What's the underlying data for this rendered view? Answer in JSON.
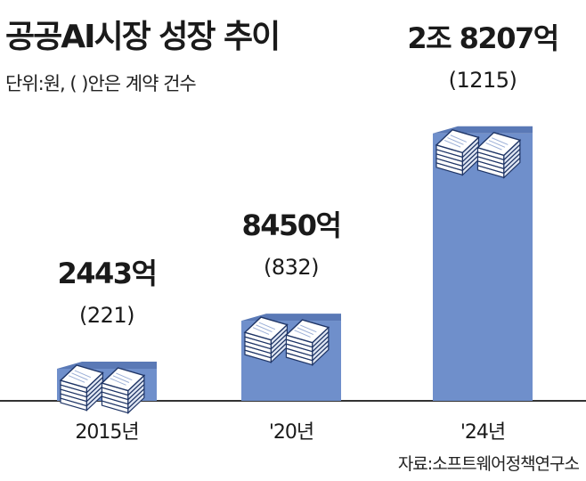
{
  "title": "공공AI시장 성장 추이",
  "unit_note": "단위:원, (   )안은 계약 건수",
  "source": "자료:소프트웨어정책연구소",
  "colors": {
    "bar": "#6f8fcb",
    "bar_dark": "#5a79b6",
    "icon_stroke": "#1f3566",
    "axis": "#333333",
    "text": "#1a1a1a"
  },
  "chart_data": {
    "type": "bar",
    "categories": [
      "2015년",
      "'20년",
      "'24년"
    ],
    "values": [
      2443,
      8450,
      28207
    ],
    "value_labels": [
      "2443억",
      "8450억",
      "2조 8207억"
    ],
    "contracts": [
      221,
      832,
      1215
    ],
    "contract_labels": [
      "(221)",
      "(832)",
      "(1215)"
    ],
    "ylabel": "원",
    "ylim": [
      0,
      30000
    ]
  }
}
